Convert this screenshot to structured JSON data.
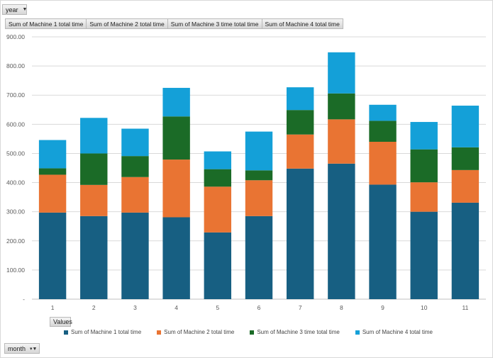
{
  "filters": {
    "year_label": "year",
    "month_label": "month",
    "values_label": "Values"
  },
  "series_tabs": [
    "Sum of Machine 1 total time",
    "Sum of Machine 2 total time",
    "Sum of Machine 3 time total time",
    "Sum of Machine 4 total time"
  ],
  "colors": {
    "m1": "#175f82",
    "m2": "#e97433",
    "m3": "#1b6b27",
    "m4": "#14a0d8",
    "grid": "#d9d9d9"
  },
  "chart_data": {
    "type": "stacked-bar",
    "categories": [
      "1",
      "2",
      "3",
      "4",
      "5",
      "6",
      "7",
      "8",
      "9",
      "10",
      "11"
    ],
    "series": [
      {
        "name": "Sum of Machine 1 total time",
        "values": [
          297,
          285,
          297,
          281,
          229,
          285,
          448,
          465,
          393,
          300,
          331
        ]
      },
      {
        "name": "Sum of Machine 2 total time",
        "values": [
          130,
          107,
          122,
          198,
          157,
          123,
          117,
          152,
          147,
          101,
          112
        ]
      },
      {
        "name": "Sum of Machine 3 time total time",
        "values": [
          22,
          108,
          72,
          148,
          60,
          34,
          84,
          89,
          72,
          113,
          78
        ]
      },
      {
        "name": "Sum of Machine 4 total time",
        "values": [
          97,
          122,
          94,
          98,
          61,
          133,
          78,
          141,
          55,
          94,
          143
        ]
      }
    ],
    "yticks": [
      "-",
      "100.00",
      "200.00",
      "300.00",
      "400.00",
      "500.00",
      "600.00",
      "700.00",
      "800.00",
      "900.00"
    ],
    "ylim": [
      0,
      900
    ],
    "grid": true,
    "legend_position": "bottom"
  }
}
